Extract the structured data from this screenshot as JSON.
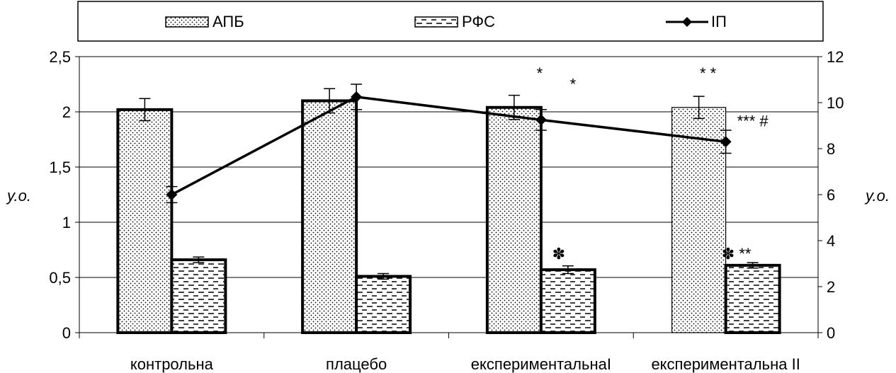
{
  "chart_data": {
    "type": "bar",
    "categories": [
      "контрольна",
      "плацебо",
      "експериментальнаI",
      "експериментальна II"
    ],
    "series": [
      {
        "name": "АПБ",
        "kind": "bar",
        "axis": "left",
        "pattern": "dots",
        "values": [
          2.02,
          2.1,
          2.04,
          2.04
        ],
        "errors": [
          0.1,
          0.11,
          0.11,
          0.1
        ]
      },
      {
        "name": "РФС",
        "kind": "bar",
        "axis": "left",
        "pattern": "dashes",
        "values": [
          0.66,
          0.51,
          0.57,
          0.61
        ],
        "errors": [
          0.025,
          0.025,
          0.035,
          0.025
        ]
      },
      {
        "name": "ІП",
        "kind": "line",
        "axis": "right",
        "marker": "diamond",
        "values": [
          6.0,
          10.25,
          9.25,
          8.3
        ],
        "errors": [
          0.35,
          0.55,
          0.45,
          0.5
        ]
      }
    ],
    "ylabel": "у.о.",
    "ylabel_right": "у.о.",
    "ylim": [
      0,
      2.5
    ],
    "yticks": [
      "0",
      "0,5",
      "1",
      "1,5",
      "2",
      "2,5"
    ],
    "ylim_right": [
      0,
      12
    ],
    "yticks_right": [
      "0",
      "2",
      "4",
      "6",
      "8",
      "10",
      "12"
    ],
    "grid": true,
    "legend_position": "top",
    "annotations": [
      {
        "text": "*",
        "category": 2,
        "value": 2.3
      },
      {
        "text": "*",
        "category": 2,
        "value": 2.28
      },
      {
        "text": "✽",
        "category": 2,
        "value": 0.73
      },
      {
        "text": "*   *",
        "category": 3,
        "value": 2.3
      },
      {
        "text": "*** #",
        "category": 3,
        "value": 1.87
      },
      {
        "text": "✽  **",
        "category": 3,
        "value": 0.73
      }
    ]
  }
}
